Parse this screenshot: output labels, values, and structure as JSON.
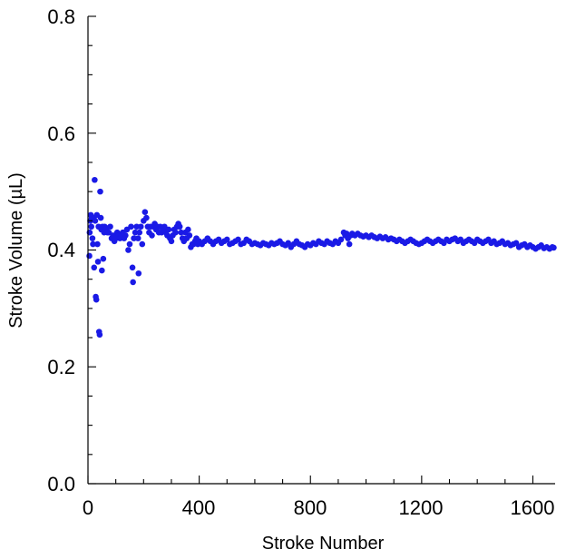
{
  "chart_data": {
    "type": "scatter",
    "title": "",
    "xlabel": "Stroke Number",
    "ylabel": "Stroke Volume (µL)",
    "xlim": [
      0,
      1680
    ],
    "ylim": [
      0.0,
      0.8
    ],
    "x_ticks": [
      "0",
      "400",
      "800",
      "1200",
      "1600"
    ],
    "y_ticks": [
      "0.0",
      "0.2",
      "0.4",
      "0.6",
      "0.8"
    ],
    "grid": false,
    "legend": "none",
    "colors": {
      "points": "#1a1ae6",
      "axes": "#000000"
    },
    "series": [
      {
        "points": [
          [
            5,
            0.39
          ],
          [
            6,
            0.43
          ],
          [
            8,
            0.45
          ],
          [
            10,
            0.46
          ],
          [
            12,
            0.44
          ],
          [
            14,
            0.455
          ],
          [
            16,
            0.42
          ],
          [
            18,
            0.41
          ],
          [
            20,
            0.455
          ],
          [
            22,
            0.37
          ],
          [
            24,
            0.52
          ],
          [
            26,
            0.45
          ],
          [
            28,
            0.32
          ],
          [
            30,
            0.315
          ],
          [
            32,
            0.46
          ],
          [
            34,
            0.41
          ],
          [
            36,
            0.38
          ],
          [
            38,
            0.44
          ],
          [
            40,
            0.26
          ],
          [
            42,
            0.255
          ],
          [
            44,
            0.5
          ],
          [
            46,
            0.455
          ],
          [
            48,
            0.435
          ],
          [
            50,
            0.365
          ],
          [
            52,
            0.44
          ],
          [
            55,
            0.385
          ],
          [
            58,
            0.43
          ],
          [
            60,
            0.44
          ],
          [
            65,
            0.435
          ],
          [
            70,
            0.43
          ],
          [
            75,
            0.43
          ],
          [
            80,
            0.44
          ],
          [
            85,
            0.42
          ],
          [
            90,
            0.425
          ],
          [
            95,
            0.415
          ],
          [
            100,
            0.42
          ],
          [
            105,
            0.43
          ],
          [
            110,
            0.425
          ],
          [
            115,
            0.42
          ],
          [
            120,
            0.425
          ],
          [
            125,
            0.43
          ],
          [
            130,
            0.42
          ],
          [
            135,
            0.425
          ],
          [
            140,
            0.435
          ],
          [
            145,
            0.4
          ],
          [
            150,
            0.41
          ],
          [
            155,
            0.44
          ],
          [
            160,
            0.37
          ],
          [
            162,
            0.345
          ],
          [
            165,
            0.42
          ],
          [
            170,
            0.43
          ],
          [
            175,
            0.44
          ],
          [
            180,
            0.42
          ],
          [
            182,
            0.36
          ],
          [
            185,
            0.43
          ],
          [
            190,
            0.44
          ],
          [
            195,
            0.41
          ],
          [
            200,
            0.45
          ],
          [
            205,
            0.465
          ],
          [
            210,
            0.455
          ],
          [
            215,
            0.44
          ],
          [
            220,
            0.43
          ],
          [
            225,
            0.44
          ],
          [
            230,
            0.425
          ],
          [
            235,
            0.44
          ],
          [
            240,
            0.445
          ],
          [
            245,
            0.435
          ],
          [
            250,
            0.44
          ],
          [
            255,
            0.43
          ],
          [
            260,
            0.44
          ],
          [
            265,
            0.43
          ],
          [
            270,
            0.435
          ],
          [
            275,
            0.44
          ],
          [
            280,
            0.43
          ],
          [
            285,
            0.425
          ],
          [
            290,
            0.435
          ],
          [
            295,
            0.42
          ],
          [
            300,
            0.415
          ],
          [
            305,
            0.425
          ],
          [
            310,
            0.435
          ],
          [
            315,
            0.43
          ],
          [
            320,
            0.44
          ],
          [
            325,
            0.445
          ],
          [
            330,
            0.44
          ],
          [
            335,
            0.43
          ],
          [
            340,
            0.42
          ],
          [
            345,
            0.415
          ],
          [
            350,
            0.43
          ],
          [
            355,
            0.42
          ],
          [
            360,
            0.435
          ],
          [
            365,
            0.425
          ],
          [
            370,
            0.405
          ],
          [
            375,
            0.41
          ],
          [
            380,
            0.41
          ],
          [
            385,
            0.415
          ],
          [
            390,
            0.42
          ],
          [
            395,
            0.41
          ],
          [
            400,
            0.415
          ],
          [
            410,
            0.41
          ],
          [
            420,
            0.415
          ],
          [
            430,
            0.42
          ],
          [
            440,
            0.415
          ],
          [
            450,
            0.41
          ],
          [
            460,
            0.415
          ],
          [
            470,
            0.418
          ],
          [
            480,
            0.412
          ],
          [
            490,
            0.415
          ],
          [
            500,
            0.418
          ],
          [
            510,
            0.41
          ],
          [
            520,
            0.412
          ],
          [
            530,
            0.415
          ],
          [
            540,
            0.418
          ],
          [
            550,
            0.41
          ],
          [
            560,
            0.412
          ],
          [
            570,
            0.418
          ],
          [
            580,
            0.415
          ],
          [
            590,
            0.41
          ],
          [
            600,
            0.412
          ],
          [
            610,
            0.41
          ],
          [
            620,
            0.408
          ],
          [
            630,
            0.412
          ],
          [
            640,
            0.41
          ],
          [
            650,
            0.408
          ],
          [
            660,
            0.412
          ],
          [
            670,
            0.41
          ],
          [
            680,
            0.412
          ],
          [
            690,
            0.415
          ],
          [
            700,
            0.41
          ],
          [
            710,
            0.408
          ],
          [
            720,
            0.412
          ],
          [
            730,
            0.405
          ],
          [
            740,
            0.41
          ],
          [
            750,
            0.415
          ],
          [
            760,
            0.41
          ],
          [
            770,
            0.408
          ],
          [
            780,
            0.405
          ],
          [
            790,
            0.41
          ],
          [
            800,
            0.408
          ],
          [
            810,
            0.412
          ],
          [
            820,
            0.41
          ],
          [
            830,
            0.415
          ],
          [
            840,
            0.412
          ],
          [
            850,
            0.41
          ],
          [
            860,
            0.415
          ],
          [
            870,
            0.412
          ],
          [
            880,
            0.41
          ],
          [
            890,
            0.415
          ],
          [
            900,
            0.412
          ],
          [
            910,
            0.418
          ],
          [
            920,
            0.43
          ],
          [
            925,
            0.425
          ],
          [
            930,
            0.428
          ],
          [
            935,
            0.42
          ],
          [
            940,
            0.41
          ],
          [
            945,
            0.425
          ],
          [
            950,
            0.428
          ],
          [
            960,
            0.425
          ],
          [
            970,
            0.428
          ],
          [
            980,
            0.425
          ],
          [
            990,
            0.423
          ],
          [
            1000,
            0.425
          ],
          [
            1010,
            0.422
          ],
          [
            1020,
            0.425
          ],
          [
            1030,
            0.422
          ],
          [
            1040,
            0.42
          ],
          [
            1050,
            0.423
          ],
          [
            1060,
            0.42
          ],
          [
            1070,
            0.422
          ],
          [
            1080,
            0.418
          ],
          [
            1090,
            0.42
          ],
          [
            1100,
            0.418
          ],
          [
            1110,
            0.415
          ],
          [
            1120,
            0.418
          ],
          [
            1130,
            0.415
          ],
          [
            1140,
            0.412
          ],
          [
            1150,
            0.415
          ],
          [
            1160,
            0.418
          ],
          [
            1170,
            0.415
          ],
          [
            1180,
            0.412
          ],
          [
            1190,
            0.41
          ],
          [
            1200,
            0.412
          ],
          [
            1210,
            0.415
          ],
          [
            1220,
            0.418
          ],
          [
            1230,
            0.415
          ],
          [
            1240,
            0.412
          ],
          [
            1250,
            0.415
          ],
          [
            1260,
            0.418
          ],
          [
            1270,
            0.415
          ],
          [
            1280,
            0.412
          ],
          [
            1290,
            0.418
          ],
          [
            1300,
            0.415
          ],
          [
            1310,
            0.418
          ],
          [
            1320,
            0.42
          ],
          [
            1330,
            0.415
          ],
          [
            1340,
            0.418
          ],
          [
            1350,
            0.412
          ],
          [
            1360,
            0.415
          ],
          [
            1370,
            0.418
          ],
          [
            1380,
            0.415
          ],
          [
            1390,
            0.412
          ],
          [
            1400,
            0.418
          ],
          [
            1410,
            0.415
          ],
          [
            1420,
            0.412
          ],
          [
            1430,
            0.415
          ],
          [
            1440,
            0.418
          ],
          [
            1450,
            0.412
          ],
          [
            1460,
            0.415
          ],
          [
            1470,
            0.41
          ],
          [
            1480,
            0.412
          ],
          [
            1490,
            0.415
          ],
          [
            1500,
            0.41
          ],
          [
            1510,
            0.412
          ],
          [
            1520,
            0.408
          ],
          [
            1530,
            0.41
          ],
          [
            1540,
            0.412
          ],
          [
            1550,
            0.405
          ],
          [
            1560,
            0.408
          ],
          [
            1570,
            0.41
          ],
          [
            1580,
            0.405
          ],
          [
            1590,
            0.408
          ],
          [
            1600,
            0.405
          ],
          [
            1610,
            0.402
          ],
          [
            1620,
            0.405
          ],
          [
            1630,
            0.408
          ],
          [
            1640,
            0.403
          ],
          [
            1650,
            0.405
          ],
          [
            1660,
            0.402
          ],
          [
            1670,
            0.405
          ],
          [
            1675,
            0.404
          ]
        ]
      }
    ]
  }
}
